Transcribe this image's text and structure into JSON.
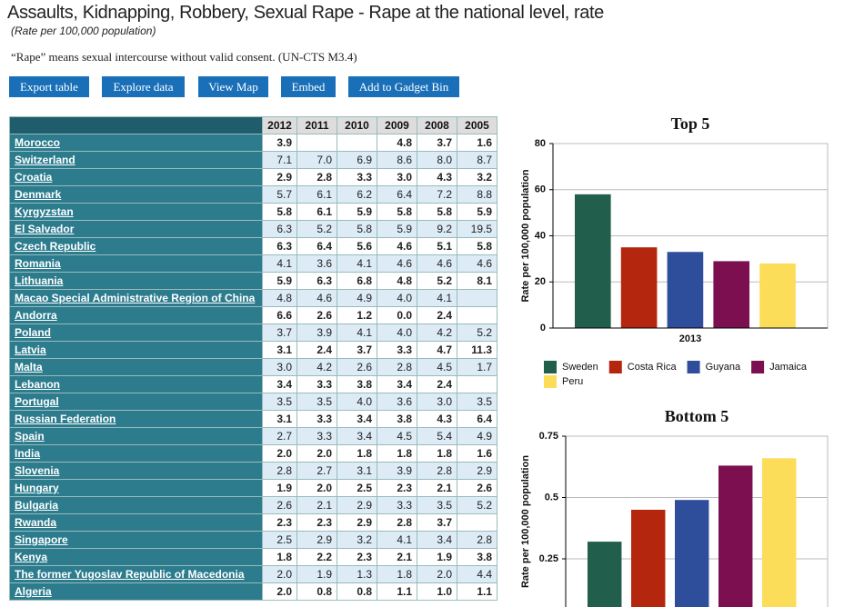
{
  "header": {
    "title": "Assaults, Kidnapping, Robbery, Sexual Rape - Rape at the national level, rate",
    "subtitle": "(Rate per 100,000 population)",
    "description": "“Rape” means sexual intercourse without valid consent. (UN-CTS M3.4)"
  },
  "buttons": [
    "Export table",
    "Explore data",
    "View Map",
    "Embed",
    "Add to Gadget Bin"
  ],
  "table": {
    "columns": [
      "2012",
      "2011",
      "2010",
      "2009",
      "2008",
      "2005"
    ],
    "rows": [
      [
        "Morocco",
        "3.9",
        null,
        null,
        "4.8",
        "3.7",
        "1.6"
      ],
      [
        "Switzerland",
        "7.1",
        "7.0",
        "6.9",
        "8.6",
        "8.0",
        "8.7"
      ],
      [
        "Croatia",
        "2.9",
        "2.8",
        "3.3",
        "3.0",
        "4.3",
        "3.2"
      ],
      [
        "Denmark",
        "5.7",
        "6.1",
        "6.2",
        "6.4",
        "7.2",
        "8.8"
      ],
      [
        "Kyrgyzstan",
        "5.8",
        "6.1",
        "5.9",
        "5.8",
        "5.8",
        "5.9"
      ],
      [
        "El Salvador",
        "6.3",
        "5.2",
        "5.8",
        "5.9",
        "9.2",
        "19.5"
      ],
      [
        "Czech Republic",
        "6.3",
        "6.4",
        "5.6",
        "4.6",
        "5.1",
        "5.8"
      ],
      [
        "Romania",
        "4.1",
        "3.6",
        "4.1",
        "4.6",
        "4.6",
        "4.6"
      ],
      [
        "Lithuania",
        "5.9",
        "6.3",
        "6.8",
        "4.8",
        "5.2",
        "8.1"
      ],
      [
        "Macao Special Administrative Region of China",
        "4.8",
        "4.6",
        "4.9",
        "4.0",
        "4.1",
        null
      ],
      [
        "Andorra",
        "6.6",
        "2.6",
        "1.2",
        "0.0",
        "2.4",
        null
      ],
      [
        "Poland",
        "3.7",
        "3.9",
        "4.1",
        "4.0",
        "4.2",
        "5.2"
      ],
      [
        "Latvia",
        "3.1",
        "2.4",
        "3.7",
        "3.3",
        "4.7",
        "11.3"
      ],
      [
        "Malta",
        "3.0",
        "4.2",
        "2.6",
        "2.8",
        "4.5",
        "1.7"
      ],
      [
        "Lebanon",
        "3.4",
        "3.3",
        "3.8",
        "3.4",
        "2.4",
        null
      ],
      [
        "Portugal",
        "3.5",
        "3.5",
        "4.0",
        "3.6",
        "3.0",
        "3.5"
      ],
      [
        "Russian Federation",
        "3.1",
        "3.3",
        "3.4",
        "3.8",
        "4.3",
        "6.4"
      ],
      [
        "Spain",
        "2.7",
        "3.3",
        "3.4",
        "4.5",
        "5.4",
        "4.9"
      ],
      [
        "India",
        "2.0",
        "2.0",
        "1.8",
        "1.8",
        "1.8",
        "1.6"
      ],
      [
        "Slovenia",
        "2.8",
        "2.7",
        "3.1",
        "3.9",
        "2.8",
        "2.9"
      ],
      [
        "Hungary",
        "1.9",
        "2.0",
        "2.5",
        "2.3",
        "2.1",
        "2.6"
      ],
      [
        "Bulgaria",
        "2.6",
        "2.1",
        "2.9",
        "3.3",
        "3.5",
        "5.2"
      ],
      [
        "Rwanda",
        "2.3",
        "2.3",
        "2.9",
        "2.8",
        "3.7",
        null
      ],
      [
        "Singapore",
        "2.5",
        "2.9",
        "3.2",
        "4.1",
        "3.4",
        "2.8"
      ],
      [
        "Kenya",
        "1.8",
        "2.2",
        "2.3",
        "2.1",
        "1.9",
        "3.8"
      ],
      [
        "The former Yugoslav Republic of Macedonia",
        "2.0",
        "1.9",
        "1.3",
        "1.8",
        "2.0",
        "4.4"
      ],
      [
        "Algeria",
        "2.0",
        "0.8",
        "0.8",
        "1.1",
        "1.0",
        "1.1"
      ]
    ]
  },
  "chart_data": [
    {
      "type": "bar",
      "title": "Top 5",
      "y_label": "Rate per 100,000 population",
      "categories": [
        "2013"
      ],
      "series": [
        {
          "name": "Sweden",
          "color": "#215e4b",
          "values": [
            58
          ]
        },
        {
          "name": "Costa Rica",
          "color": "#b5260e",
          "values": [
            35
          ]
        },
        {
          "name": "Guyana",
          "color": "#2e4d9a",
          "values": [
            33
          ]
        },
        {
          "name": "Jamaica",
          "color": "#7c0f4f",
          "values": [
            29
          ]
        },
        {
          "name": "Peru",
          "color": "#fbdd5a",
          "values": [
            28
          ]
        }
      ],
      "ylim": [
        0,
        80
      ],
      "yticks": [
        0,
        20,
        40,
        60,
        80
      ],
      "grid": true,
      "legend": "bottom"
    },
    {
      "type": "bar",
      "title": "Bottom 5",
      "y_label": "Rate per 100,000 population",
      "series": [
        {
          "color": "#215e4b",
          "values": [
            0.32
          ]
        },
        {
          "color": "#b5260e",
          "values": [
            0.45
          ]
        },
        {
          "color": "#2e4d9a",
          "values": [
            0.49
          ]
        },
        {
          "color": "#7c0f4f",
          "values": [
            0.63
          ]
        },
        {
          "color": "#fbdd5a",
          "values": [
            0.66
          ]
        }
      ],
      "ylim": [
        0,
        0.75
      ],
      "yticks": [
        0.25,
        0.5,
        0.75
      ],
      "grid": true
    }
  ]
}
